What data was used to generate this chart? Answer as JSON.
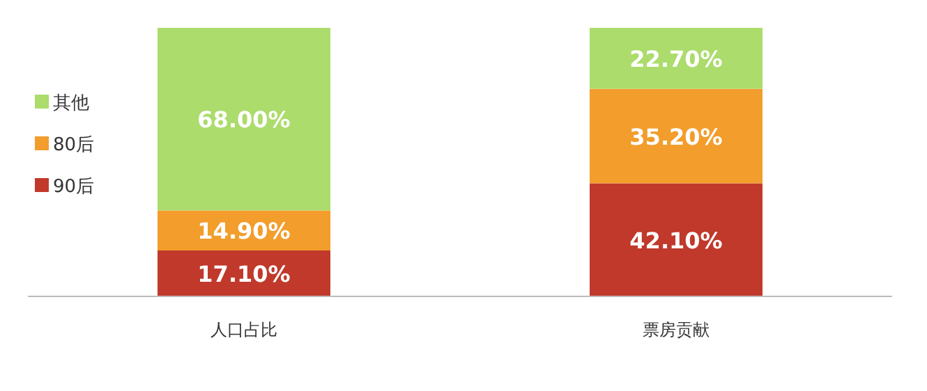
{
  "chart_data": {
    "type": "bar",
    "stacked": true,
    "categories": [
      "人口占比",
      "票房贡献"
    ],
    "legend": "left",
    "series": [
      {
        "name": "90后",
        "color": "#c0392b",
        "values": [
          17.1,
          42.1
        ],
        "value_labels": [
          "17.10%",
          "42.10%"
        ]
      },
      {
        "name": "80后",
        "color": "#f29d2c",
        "values": [
          14.9,
          35.2
        ],
        "value_labels": [
          "14.90%",
          "35.20%"
        ]
      },
      {
        "name": "其他",
        "color": "#acdc6c",
        "values": [
          68.0,
          22.7
        ],
        "value_labels": [
          "68.00%",
          "22.70%"
        ]
      }
    ]
  }
}
